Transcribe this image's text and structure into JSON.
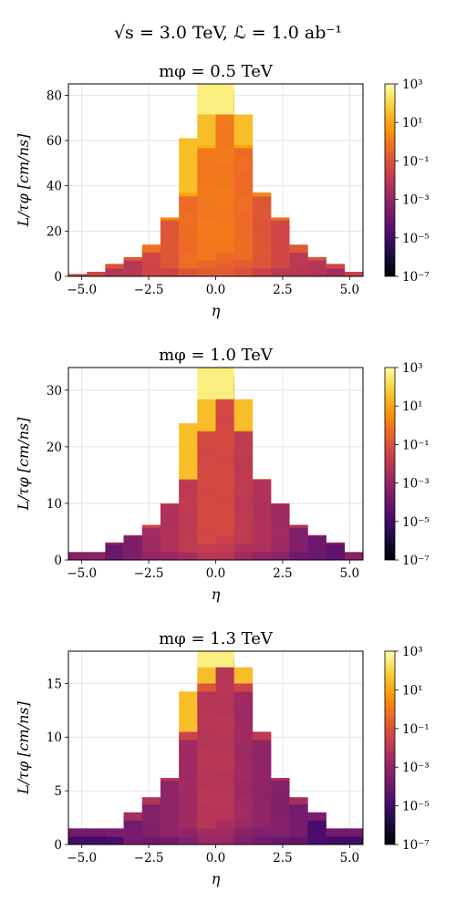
{
  "figure": {
    "suptitle": "√s = 3.0 TeV, ℒ = 1.0 ab⁻¹"
  },
  "colors": {
    "colormap": "inferno",
    "colormap_stops": [
      "#000004",
      "#1b0c41",
      "#4a0c6b",
      "#781c6d",
      "#a52c60",
      "#cf4446",
      "#ed6925",
      "#fb9b06",
      "#f7d13d",
      "#fcffa4"
    ],
    "grid": "#dddddd"
  },
  "chart_data": [
    {
      "type": "heatmap",
      "title": "mφ = 0.5 TeV",
      "xlabel": "η",
      "ylabel": "L/τφ [cm/ns]",
      "xlim": [
        -5.5,
        5.5
      ],
      "ylim": [
        0,
        85
      ],
      "x_ticks": [
        -5.0,
        -2.5,
        0.0,
        2.5,
        5.0
      ],
      "x_tick_labels": [
        "−5.0",
        "−2.5",
        "0.0",
        "2.5",
        "5.0"
      ],
      "y_ticks": [
        0,
        20,
        40,
        60,
        80
      ],
      "y_tick_labels": [
        "0",
        "20",
        "40",
        "60",
        "80"
      ],
      "eta_bin_width": 0.6875,
      "eta_bin_centers": [
        -5.156,
        -4.469,
        -3.781,
        -3.094,
        -2.406,
        -1.719,
        -1.031,
        -0.344,
        0.344,
        1.031,
        1.719,
        2.406,
        3.094,
        3.781,
        4.469,
        5.156
      ],
      "column_top_LoverTau": [
        1.0,
        2.0,
        5.5,
        8.5,
        14.0,
        26.0,
        37.0,
        58.0,
        80.0,
        58.0,
        37.0,
        26.0,
        14.0,
        8.5,
        5.5,
        2.0
      ],
      "center_top_LoverTau": 85,
      "peak_log10_weight": [
        -2.8,
        -2.6,
        -2.2,
        -2.0,
        -1.4,
        -0.9,
        -0.3,
        0.0,
        0.0,
        -0.3,
        -0.9,
        -1.4,
        -2.0,
        -2.2,
        -2.6,
        -2.8
      ],
      "colorbar": {
        "scale": "log",
        "range": [
          1e-07,
          1000
        ],
        "ticks": [
          -7,
          -5,
          -3,
          -1,
          1,
          3
        ],
        "tick_labels": [
          "10⁻⁷",
          "10⁻⁵",
          "10⁻³",
          "10⁻¹",
          "10¹",
          "10³"
        ]
      },
      "grid": true
    },
    {
      "type": "heatmap",
      "title": "mφ = 1.0 TeV",
      "xlabel": "η",
      "ylabel": "L/τφ [cm/ns]",
      "xlim": [
        -5.5,
        5.5
      ],
      "ylim": [
        0,
        34
      ],
      "x_ticks": [
        -5.0,
        -2.5,
        0.0,
        2.5,
        5.0
      ],
      "x_tick_labels": [
        "−5.0",
        "−2.5",
        "0.0",
        "2.5",
        "5.0"
      ],
      "y_ticks": [
        0,
        10,
        20,
        30
      ],
      "y_tick_labels": [
        "0",
        "10",
        "20",
        "30"
      ],
      "eta_bin_width": 0.6875,
      "eta_bin_centers": [
        -5.156,
        -4.469,
        -3.781,
        -3.094,
        -2.406,
        -1.719,
        -1.031,
        -0.344,
        0.344,
        1.031,
        1.719,
        2.406,
        3.094,
        3.781,
        4.469,
        5.156
      ],
      "column_top_LoverTau": [
        1.4,
        1.4,
        3.1,
        4.4,
        6.2,
        10.0,
        14.3,
        22.8,
        32.0,
        22.8,
        14.3,
        10.0,
        6.2,
        4.4,
        3.1,
        1.4
      ],
      "center_top_LoverTau": 34,
      "peak_log10_weight": [
        -4.5,
        -4.3,
        -4.0,
        -3.5,
        -2.7,
        -2.3,
        -1.9,
        -1.3,
        -1.3,
        -1.9,
        -2.3,
        -2.7,
        -3.5,
        -4.0,
        -4.3,
        -4.5
      ],
      "colorbar": {
        "scale": "log",
        "range": [
          1e-07,
          1000
        ],
        "ticks": [
          -7,
          -5,
          -3,
          -1,
          1,
          3
        ],
        "tick_labels": [
          "10⁻⁷",
          "10⁻⁵",
          "10⁻³",
          "10⁻¹",
          "10¹",
          "10³"
        ]
      },
      "grid": true
    },
    {
      "type": "heatmap",
      "title": "mφ = 1.3 TeV",
      "xlabel": "η",
      "ylabel": "L/τφ [cm/ns]",
      "xlim": [
        -5.5,
        5.5
      ],
      "ylim": [
        0,
        18
      ],
      "x_ticks": [
        -5.0,
        -2.5,
        0.0,
        2.5,
        5.0
      ],
      "x_tick_labels": [
        "−5.0",
        "−2.5",
        "0.0",
        "2.5",
        "5.0"
      ],
      "y_ticks": [
        0,
        5,
        10,
        15
      ],
      "y_tick_labels": [
        "0",
        "5",
        "10",
        "15"
      ],
      "eta_bin_width": 0.6875,
      "eta_bin_centers": [
        -5.156,
        -4.469,
        -3.781,
        -3.094,
        -2.406,
        -1.719,
        -1.031,
        -0.344,
        0.344,
        1.031,
        1.719,
        2.406,
        3.094,
        3.781,
        4.469,
        5.156
      ],
      "column_top_LoverTau": [
        1.5,
        1.5,
        1.5,
        3.0,
        4.4,
        6.2,
        10.5,
        15.0,
        17.0,
        15.0,
        10.5,
        6.2,
        4.4,
        3.0,
        1.5,
        1.5
      ],
      "center_top_LoverTau": 18,
      "peak_log10_weight": [
        -5.0,
        -5.0,
        -4.8,
        -3.7,
        -3.4,
        -3.1,
        -2.7,
        -2.1,
        -2.1,
        -2.7,
        -3.1,
        -3.4,
        -3.7,
        -4.8,
        -5.0,
        -5.0
      ],
      "colorbar": {
        "scale": "log",
        "range": [
          1e-07,
          1000
        ],
        "ticks": [
          -7,
          -5,
          -3,
          -1,
          1,
          3
        ],
        "tick_labels": [
          "10⁻⁷",
          "10⁻⁵",
          "10⁻³",
          "10⁻¹",
          "10¹",
          "10³"
        ]
      },
      "grid": true
    }
  ]
}
